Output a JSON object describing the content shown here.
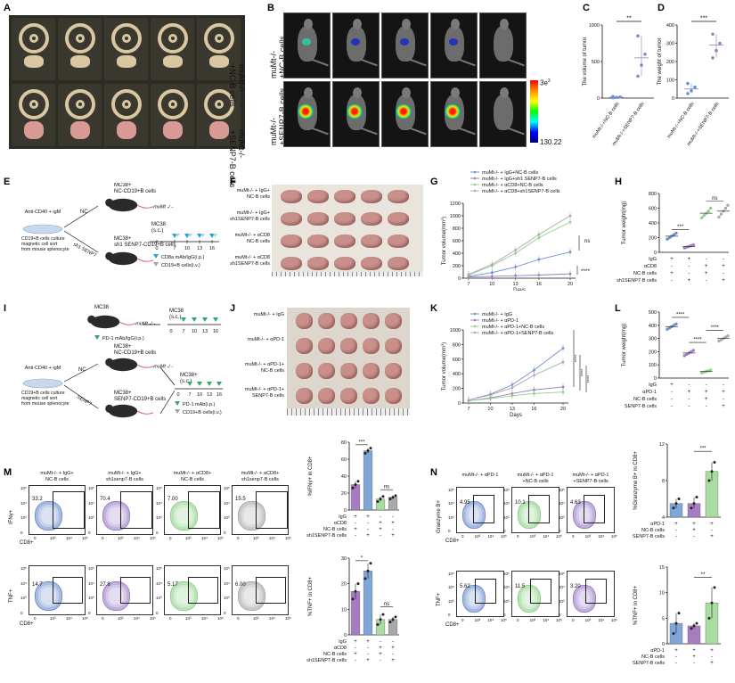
{
  "panels": {
    "A": {
      "letter": "A",
      "row1": "muMt-/-\n+NC-B cells",
      "row1_l1": "muMt-/-",
      "row1_l2": "+NC-B cells",
      "row2_l1": "muMt-/-",
      "row2_l2": "+SENP7-B cells"
    },
    "B": {
      "letter": "B",
      "row1_l1": "muMt-/-",
      "row1_l2": "+NC-B cells",
      "row2_l1": "muMt-/-",
      "row2_l2": "+SENP7-B cells",
      "scale_max": "3e",
      "scale_max_sup": "3",
      "scale_min": "130.22"
    },
    "C": {
      "letter": "C",
      "ylabel": "The volume of tumor",
      "sig": "**",
      "x_labels": [
        "muMt-/-+NC-B cells",
        "muMt-/-+SENP7-B cells"
      ]
    },
    "D": {
      "letter": "D",
      "ylabel": "The weight of tumor",
      "sig": "***",
      "x_labels": [
        "muMt-/-+NC-B cells",
        "muMt-/-+SENP7-B cells"
      ]
    },
    "E": {
      "letter": "E",
      "anti": "Anti-CD40 + igM",
      "culture_l1": "CD19+B  cells culture",
      "culture_l2": "magnetic cell sort",
      "culture_l3": "from mouse splenocyte",
      "nc": "NC",
      "sh": "sh1 SENP7",
      "mc38_top_l1": "MC38+",
      "mc38_top_l2": "NC-CD19+B cells",
      "mc38_bot_l1": "MC38+",
      "mc38_bot_l2": "sh1 SENP7-CD19+B cells",
      "mouse": "muMt -/ -",
      "mc38_sc": "MC38",
      "sc": "(s.c.)",
      "days": [
        "0",
        "7",
        "10",
        "13",
        "16"
      ],
      "legend1": "CD8a mAb/IgG(i.p.)",
      "legend2": "CD19+B cells(i.v.)"
    },
    "F": {
      "letter": "F",
      "rows": [
        [
          "muMt-/- + IgG+",
          "NC-B cells"
        ],
        [
          "muMt-/- + IgG+",
          "sh1SENP7-B cells"
        ],
        [
          "muMt-/- + αCD8",
          "NC-B cells"
        ],
        [
          "muMt-/- + αCD8",
          "sh1SENP7-B cells"
        ]
      ]
    },
    "G": {
      "letter": "G",
      "legend": [
        "muMt-/- + IgG+NC-B cells",
        "muMt-/- + IgG+sh1 SENP7-B cells",
        "muMt-/- + αCD8+NC-B cells",
        "muMt-/- + αCD8+sh1SENP7-B cells"
      ],
      "ylabel": "Tumor volume(mm",
      "ylabel_sup": "3",
      "ylabel_end": ")",
      "xlabel": "Days",
      "ns": "ns",
      "sig": "****"
    },
    "H": {
      "letter": "H",
      "ylabel": "Tumor weight(mg)",
      "sig": "***",
      "ns": "ns",
      "rows": [
        {
          "label": "IgG",
          "vals": [
            "+",
            "+",
            "-",
            "-"
          ]
        },
        {
          "label": "αCD8",
          "vals": [
            "-",
            "-",
            "+",
            "+"
          ]
        },
        {
          "label": "NC-B cells",
          "vals": [
            "+",
            "-",
            "+",
            "-"
          ]
        },
        {
          "label": "sh1SENP7-B cells",
          "vals": [
            "-",
            "+",
            "-",
            "+"
          ]
        }
      ]
    },
    "I": {
      "letter": "I",
      "mc38": "MC38",
      "mouse": "muMt -/ -",
      "sc": "(s.c.)",
      "days": [
        "0",
        "7",
        "10",
        "13",
        "16"
      ],
      "legend_pd1": "PD-1 mAb/IgG(i.p.)",
      "anti": "Anti-CD40 + igM",
      "culture_l1": "CD19+B  cells culture",
      "culture_l2": "magnetic cell sort",
      "culture_l3": "from mouse splenocyte",
      "nc": "NC",
      "senp7": "SENP7",
      "mc38_top_l1": "MC38+",
      "mc38_top_l2": "NC-CD19+B cells",
      "mc38_bot_l1": "MC38+",
      "mc38_bot_l2": "SENP7-CD19+B cells",
      "mc38_plus": "MC38+",
      "legend1": "PD-1 mAb(i.p.)",
      "legend2": "CD19+B cells(i.v.)"
    },
    "J": {
      "letter": "J",
      "rows": [
        [
          "muMt-/- + IgG"
        ],
        [
          "muMt-/- + αPD-1"
        ],
        [
          "muMt-/- + αPD-1+",
          "NC-B cells"
        ],
        [
          "muMt-/- + αPD-1+",
          "SENP7-B cells"
        ]
      ]
    },
    "K": {
      "letter": "K",
      "legend": [
        "muMt-/- + IgG",
        "muMt-/- + αPD-1",
        "muMt-/- + αPD-1+NC-B cells",
        "muMt-/- + αPD-1+SENP7-B cells"
      ],
      "ylabel": "Tumor volume(mm",
      "ylabel_sup": "3",
      "ylabel_end": ")",
      "xlabel": "Days",
      "sig": "****"
    },
    "L": {
      "letter": "L",
      "ylabel": "Tumor weight(mg)",
      "sig": "****",
      "rows": [
        {
          "label": "IgG",
          "vals": [
            "+",
            "-",
            "-",
            "-"
          ]
        },
        {
          "label": "αPD-1",
          "vals": [
            "-",
            "+",
            "+",
            "+"
          ]
        },
        {
          "label": "NC-B cells",
          "vals": [
            "-",
            "-",
            "+",
            "-"
          ]
        },
        {
          "label": "SENP7-B cells",
          "vals": [
            "-",
            "-",
            "-",
            "+"
          ]
        }
      ]
    },
    "M": {
      "letter": "M",
      "titles": [
        [
          "muMt-/- + IgG+",
          "NC-B cells"
        ],
        [
          "muMt-/- + IgG+",
          "sh1senp7-B cells"
        ],
        [
          "muMt-/- + αCD8+",
          "NC-B cells"
        ],
        [
          "muMt-/- + αCD8+",
          "sh1senp7-B cells"
        ]
      ],
      "ifn_vals": [
        "33.2",
        "70.4",
        "7.00",
        "15.5"
      ],
      "tnf_vals": [
        "14.7",
        "27.8",
        "5.17",
        "6.00"
      ],
      "ylabel_ifn": "IFNγ+",
      "ylabel_tnf": "TNF+",
      "xlabel": "CD8+",
      "bar1_ylabel": "%IFNγ+ in CD8+",
      "bar2_ylabel": "%TNF+ in CD8+",
      "bar1_sig": "***",
      "bar1_ns": "ns",
      "bar2_sig": "*",
      "bar2_ns": "ns",
      "rows": [
        {
          "label": "IgG",
          "vals": [
            "+",
            "+",
            "-",
            "-"
          ]
        },
        {
          "label": "αCD8",
          "vals": [
            "-",
            "-",
            "+",
            "+"
          ]
        },
        {
          "label": "NC-B cells",
          "vals": [
            "+",
            "-",
            "+",
            "-"
          ]
        },
        {
          "label": "sh1SENP7-B cells",
          "vals": [
            "-",
            "+",
            "-",
            "+"
          ]
        }
      ]
    },
    "N": {
      "letter": "N",
      "titles": [
        [
          "muMt-/- + αPD-1"
        ],
        [
          "muMt-/- + αPD-1",
          "+NC-B cells"
        ],
        [
          "muMt-/- + αPD-1",
          "+SENP7-B cells"
        ]
      ],
      "gzm_vals": [
        "4.95",
        "10.1",
        "4.63"
      ],
      "tnf_vals": [
        "5.62",
        "11.5",
        "3.20"
      ],
      "ylabel_gzm": "Granzyme B+",
      "ylabel_tnf": "TNF+",
      "xlabel": "CD8+",
      "bar1_ylabel": "%Granzyme B+ in CD8+",
      "bar2_ylabel": "%TNF+ in CD8+",
      "bar1_sig": "***",
      "bar2_sig": "**",
      "rows": [
        {
          "label": "αPD-1",
          "vals": [
            "+",
            "+",
            "+"
          ]
        },
        {
          "label": "NC-B cells",
          "vals": [
            "-",
            "+",
            "-"
          ]
        },
        {
          "label": "SENP7-B cells",
          "vals": [
            "-",
            "-",
            "+"
          ]
        }
      ]
    }
  },
  "colors": {
    "purple": "#9b7cc6",
    "blue": "#6f8fd0",
    "green": "#8fd18a",
    "grey": "#a9a9a9",
    "bar_purple": "#a77dc1",
    "bar_blue": "#7ea6d8",
    "bar_green": "#a9dca0",
    "tumor": "#c98f8a"
  },
  "chart_data": [
    {
      "type": "scatter",
      "panel": "C",
      "categories": [
        "muMt-/-+NC-B cells",
        "muMt-/-+SENP7-B cells"
      ],
      "ylim": [
        0,
        1000
      ],
      "yticks": [
        "0",
        "500",
        "1000"
      ],
      "values": [
        [
          5,
          10,
          15,
          20
        ],
        [
          300,
          450,
          600,
          850
        ]
      ],
      "means": [
        12,
        550
      ]
    },
    {
      "type": "scatter",
      "panel": "D",
      "categories": [
        "muMt-/-+NC-B cells",
        "muMt-/-+SENP7-B cells"
      ],
      "ylim": [
        0,
        400
      ],
      "yticks": [
        "0",
        "100",
        "200",
        "300",
        "400"
      ],
      "values": [
        [
          25,
          40,
          60,
          80
        ],
        [
          220,
          260,
          300,
          350
        ]
      ],
      "means": [
        50,
        290
      ]
    },
    {
      "type": "line",
      "panel": "G",
      "x": [
        7,
        10,
        13,
        16,
        20
      ],
      "xticks": [
        "7",
        "10",
        "13",
        "16",
        "20"
      ],
      "ylim": [
        0,
        1200
      ],
      "yticks": [
        "0",
        "200",
        "400",
        "600",
        "800",
        "1000",
        "1200"
      ],
      "series": [
        {
          "name": "muMt-/- + IgG+NC-B cells",
          "values": [
            30,
            90,
            180,
            300,
            420
          ]
        },
        {
          "name": "muMt-/- + IgG+sh1 SENP7-B cells",
          "values": [
            20,
            30,
            40,
            50,
            70
          ]
        },
        {
          "name": "muMt-/- + αCD8+NC-B cells",
          "values": [
            50,
            200,
            400,
            650,
            900
          ]
        },
        {
          "name": "muMt-/- + αCD8+sh1SENP7-B cells",
          "values": [
            60,
            220,
            450,
            700,
            1000
          ]
        }
      ]
    },
    {
      "type": "scatter",
      "panel": "H",
      "ylim": [
        0,
        800
      ],
      "yticks": [
        "0",
        "200",
        "400",
        "600",
        "800"
      ],
      "values": [
        [
          180,
          200,
          220,
          240,
          260
        ],
        [
          60,
          70,
          80,
          90,
          100
        ],
        [
          470,
          500,
          530,
          560,
          600
        ],
        [
          480,
          520,
          560,
          600,
          640
        ]
      ]
    },
    {
      "type": "line",
      "panel": "K",
      "x": [
        7,
        10,
        13,
        16,
        20
      ],
      "xticks": [
        "7",
        "10",
        "13",
        "16",
        "20"
      ],
      "ylim": [
        0,
        1000
      ],
      "yticks": [
        "0",
        "200",
        "400",
        "600",
        "800",
        "1000"
      ],
      "series": [
        {
          "name": "muMt-/- + IgG",
          "values": [
            40,
            120,
            250,
            450,
            750
          ]
        },
        {
          "name": "muMt-/- + αPD-1",
          "values": [
            30,
            70,
            130,
            180,
            220
          ]
        },
        {
          "name": "muMt-/- + αPD-1+NC-B cells",
          "values": [
            30,
            60,
            100,
            130,
            150
          ]
        },
        {
          "name": "muMt-/- + αPD-1+SENP7-B cells",
          "values": [
            40,
            110,
            210,
            380,
            560
          ]
        }
      ]
    },
    {
      "type": "scatter",
      "panel": "L",
      "ylim": [
        0,
        500
      ],
      "yticks": [
        "0",
        "100",
        "200",
        "300",
        "400",
        "500"
      ],
      "values": [
        [
          370,
          380,
          390,
          400,
          410
        ],
        [
          170,
          180,
          190,
          200,
          210
        ],
        [
          40,
          45,
          50,
          55,
          60
        ],
        [
          280,
          290,
          300,
          310,
          320
        ]
      ]
    },
    {
      "type": "bar",
      "panel": "M-IFN",
      "ylim": [
        0,
        80
      ],
      "yticks": [
        "0",
        "20",
        "40",
        "60",
        "80"
      ],
      "values": [
        30,
        70,
        13,
        15
      ],
      "points": [
        [
          26,
          30,
          34
        ],
        [
          67,
          70,
          73
        ],
        [
          10,
          13,
          16
        ],
        [
          13,
          15,
          17
        ]
      ]
    },
    {
      "type": "bar",
      "panel": "M-TNF",
      "ylim": [
        0,
        30
      ],
      "yticks": [
        "0",
        "10",
        "20",
        "30"
      ],
      "values": [
        17,
        25,
        6,
        6
      ],
      "points": [
        [
          14,
          17,
          20
        ],
        [
          22,
          25,
          28
        ],
        [
          4,
          6,
          8
        ],
        [
          5,
          6,
          7
        ]
      ]
    },
    {
      "type": "bar",
      "panel": "N-GZM",
      "ylim": [
        4,
        12
      ],
      "yticks": [
        "4",
        "8",
        "12"
      ],
      "values": [
        5.5,
        5.5,
        9
      ],
      "points": [
        [
          5.0,
          5.5,
          6.0
        ],
        [
          5.0,
          5.5,
          6.2
        ],
        [
          8.0,
          9.0,
          10.0
        ]
      ]
    },
    {
      "type": "bar",
      "panel": "N-TNF",
      "ylim": [
        0,
        15
      ],
      "yticks": [
        "0",
        "5",
        "10",
        "15"
      ],
      "values": [
        4,
        3.5,
        8
      ],
      "points": [
        [
          2,
          4,
          6
        ],
        [
          3,
          3.5,
          4
        ],
        [
          5,
          8,
          11
        ]
      ]
    }
  ]
}
